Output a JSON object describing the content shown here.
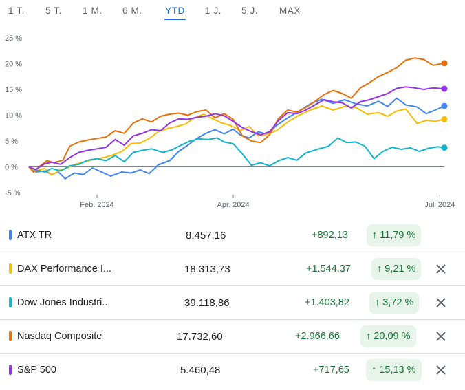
{
  "tabs": [
    {
      "label": "1 T."
    },
    {
      "label": "5 T."
    },
    {
      "label": "1 M."
    },
    {
      "label": "6 M."
    },
    {
      "label": "YTD",
      "active": true
    },
    {
      "label": "1 J."
    },
    {
      "label": "5 J."
    },
    {
      "label": "MAX"
    }
  ],
  "chart_data": {
    "type": "line",
    "title": "",
    "xlabel": "",
    "ylabel": "",
    "y_ticks": [
      "25 %",
      "20 %",
      "15 %",
      "10 %",
      "5 %",
      "0 %",
      "-5 %"
    ],
    "ylim": [
      -5,
      25
    ],
    "x_tick_labels": [
      "Feb. 2024",
      "Apr. 2024",
      "Juli 2024"
    ],
    "x_range": [
      "2024-01-02",
      "2024-07-03"
    ],
    "grid": false,
    "series": [
      {
        "name": "ATX TR",
        "color": "#4285f4",
        "points": [
          [
            "2024-01-02",
            0
          ],
          [
            "2024-01-05",
            -1
          ],
          [
            "2024-01-09",
            -0.8
          ],
          [
            "2024-01-12",
            -1.5
          ],
          [
            "2024-01-15",
            -1
          ],
          [
            "2024-01-18",
            -2.3
          ],
          [
            "2024-01-22",
            -1.2
          ],
          [
            "2024-01-26",
            -1.5
          ],
          [
            "2024-01-30",
            -0.2
          ],
          [
            "2024-02-03",
            -1.0
          ],
          [
            "2024-02-07",
            -1.8
          ],
          [
            "2024-02-12",
            -1.0
          ],
          [
            "2024-02-16",
            -1.2
          ],
          [
            "2024-02-20",
            -0.6
          ],
          [
            "2024-02-24",
            -1.3
          ],
          [
            "2024-02-28",
            0.4
          ],
          [
            "2024-03-04",
            1.2
          ],
          [
            "2024-03-08",
            3.0
          ],
          [
            "2024-03-12",
            4.2
          ],
          [
            "2024-03-16",
            5.5
          ],
          [
            "2024-03-20",
            6.5
          ],
          [
            "2024-03-24",
            7.2
          ],
          [
            "2024-03-28",
            6.4
          ],
          [
            "2024-04-01",
            7.3
          ],
          [
            "2024-04-04",
            6.2
          ],
          [
            "2024-04-08",
            5.6
          ],
          [
            "2024-04-12",
            6.8
          ],
          [
            "2024-04-16",
            6.3
          ],
          [
            "2024-04-20",
            8.0
          ],
          [
            "2024-04-25",
            9.5
          ],
          [
            "2024-04-30",
            10.8
          ],
          [
            "2024-05-05",
            12.2
          ],
          [
            "2024-05-10",
            13.1
          ],
          [
            "2024-05-15",
            12.3
          ],
          [
            "2024-05-20",
            13.0
          ],
          [
            "2024-05-25",
            12.2
          ],
          [
            "2024-05-30",
            11.8
          ],
          [
            "2024-06-04",
            12.7
          ],
          [
            "2024-06-08",
            11.7
          ],
          [
            "2024-06-12",
            13.3
          ],
          [
            "2024-06-16",
            12.0
          ],
          [
            "2024-06-21",
            11.6
          ],
          [
            "2024-06-25",
            10.3
          ],
          [
            "2024-06-29",
            11.0
          ],
          [
            "2024-07-03",
            11.79
          ]
        ]
      },
      {
        "name": "DAX Performance I...",
        "color": "#fbbc04",
        "points": [
          [
            "2024-01-02",
            0
          ],
          [
            "2024-01-05",
            -0.8
          ],
          [
            "2024-01-09",
            -0.3
          ],
          [
            "2024-01-12",
            -1.6
          ],
          [
            "2024-01-16",
            -0.6
          ],
          [
            "2024-01-19",
            -0.2
          ],
          [
            "2024-01-23",
            0.6
          ],
          [
            "2024-01-27",
            1.0
          ],
          [
            "2024-01-31",
            1.5
          ],
          [
            "2024-02-04",
            1.8
          ],
          [
            "2024-02-08",
            2.3
          ],
          [
            "2024-02-12",
            3.0
          ],
          [
            "2024-02-16",
            4.5
          ],
          [
            "2024-02-20",
            4.6
          ],
          [
            "2024-02-24",
            5.5
          ],
          [
            "2024-02-28",
            6.8
          ],
          [
            "2024-03-03",
            7.4
          ],
          [
            "2024-03-07",
            7.8
          ],
          [
            "2024-03-11",
            8.3
          ],
          [
            "2024-03-15",
            9.5
          ],
          [
            "2024-03-19",
            10.2
          ],
          [
            "2024-03-23",
            9.3
          ],
          [
            "2024-03-27",
            8.5
          ],
          [
            "2024-03-31",
            8.0
          ],
          [
            "2024-04-04",
            7.0
          ],
          [
            "2024-04-08",
            7.8
          ],
          [
            "2024-04-12",
            6.0
          ],
          [
            "2024-04-16",
            6.3
          ],
          [
            "2024-04-20",
            7.0
          ],
          [
            "2024-04-25",
            8.7
          ],
          [
            "2024-04-30",
            10.0
          ],
          [
            "2024-05-05",
            11.0
          ],
          [
            "2024-05-10",
            11.8
          ],
          [
            "2024-05-15",
            11.0
          ],
          [
            "2024-05-20",
            11.7
          ],
          [
            "2024-05-25",
            11.5
          ],
          [
            "2024-05-30",
            10.2
          ],
          [
            "2024-06-04",
            10.5
          ],
          [
            "2024-06-08",
            9.8
          ],
          [
            "2024-06-12",
            10.8
          ],
          [
            "2024-06-16",
            11.2
          ],
          [
            "2024-06-21",
            8.4
          ],
          [
            "2024-06-25",
            9.0
          ],
          [
            "2024-06-29",
            8.8
          ],
          [
            "2024-07-03",
            9.21
          ]
        ]
      },
      {
        "name": "Dow Jones Industri...",
        "color": "#12b5cb",
        "points": [
          [
            "2024-01-02",
            0
          ],
          [
            "2024-01-05",
            -0.6
          ],
          [
            "2024-01-09",
            -1.0
          ],
          [
            "2024-01-12",
            -0.3
          ],
          [
            "2024-01-16",
            -0.8
          ],
          [
            "2024-01-20",
            0.2
          ],
          [
            "2024-01-24",
            0.5
          ],
          [
            "2024-01-28",
            1.3
          ],
          [
            "2024-02-01",
            1.6
          ],
          [
            "2024-02-05",
            1.2
          ],
          [
            "2024-02-09",
            2.2
          ],
          [
            "2024-02-13",
            1.0
          ],
          [
            "2024-02-17",
            2.8
          ],
          [
            "2024-02-21",
            3.2
          ],
          [
            "2024-02-25",
            3.5
          ],
          [
            "2024-03-01",
            2.8
          ],
          [
            "2024-03-05",
            3.3
          ],
          [
            "2024-03-09",
            4.2
          ],
          [
            "2024-03-13",
            5.0
          ],
          [
            "2024-03-17",
            5.4
          ],
          [
            "2024-03-21",
            5.3
          ],
          [
            "2024-03-25",
            5.6
          ],
          [
            "2024-03-28",
            4.8
          ],
          [
            "2024-04-01",
            4.5
          ],
          [
            "2024-04-05",
            2.5
          ],
          [
            "2024-04-09",
            0.3
          ],
          [
            "2024-04-13",
            0.8
          ],
          [
            "2024-04-17",
            0.2
          ],
          [
            "2024-04-21",
            1.2
          ],
          [
            "2024-04-25",
            1.8
          ],
          [
            "2024-04-29",
            1.3
          ],
          [
            "2024-05-03",
            2.7
          ],
          [
            "2024-05-08",
            3.4
          ],
          [
            "2024-05-13",
            4.0
          ],
          [
            "2024-05-17",
            5.6
          ],
          [
            "2024-05-21",
            4.7
          ],
          [
            "2024-05-25",
            4.8
          ],
          [
            "2024-05-29",
            4.0
          ],
          [
            "2024-06-02",
            1.6
          ],
          [
            "2024-06-06",
            3.0
          ],
          [
            "2024-06-10",
            3.8
          ],
          [
            "2024-06-14",
            3.4
          ],
          [
            "2024-06-18",
            3.7
          ],
          [
            "2024-06-22",
            3.0
          ],
          [
            "2024-06-26",
            3.6
          ],
          [
            "2024-06-30",
            3.9
          ],
          [
            "2024-07-03",
            3.72
          ]
        ]
      },
      {
        "name": "Nasdaq Composite",
        "color": "#e8710a",
        "points": [
          [
            "2024-01-02",
            0
          ],
          [
            "2024-01-04",
            -1.0
          ],
          [
            "2024-01-07",
            0.2
          ],
          [
            "2024-01-10",
            1.2
          ],
          [
            "2024-01-13",
            0.8
          ],
          [
            "2024-01-17",
            1.3
          ],
          [
            "2024-01-20",
            4.0
          ],
          [
            "2024-01-24",
            4.8
          ],
          [
            "2024-01-28",
            5.2
          ],
          [
            "2024-02-01",
            5.5
          ],
          [
            "2024-02-05",
            5.8
          ],
          [
            "2024-02-09",
            7.0
          ],
          [
            "2024-02-13",
            6.5
          ],
          [
            "2024-02-17",
            8.5
          ],
          [
            "2024-02-21",
            9.3
          ],
          [
            "2024-02-25",
            8.7
          ],
          [
            "2024-02-29",
            9.8
          ],
          [
            "2024-03-04",
            10.2
          ],
          [
            "2024-03-08",
            10.4
          ],
          [
            "2024-03-12",
            10.0
          ],
          [
            "2024-03-16",
            10.7
          ],
          [
            "2024-03-20",
            11.0
          ],
          [
            "2024-03-24",
            9.5
          ],
          [
            "2024-03-28",
            10.3
          ],
          [
            "2024-04-01",
            9.2
          ],
          [
            "2024-04-05",
            6.0
          ],
          [
            "2024-04-09",
            5.0
          ],
          [
            "2024-04-13",
            4.7
          ],
          [
            "2024-04-17",
            6.2
          ],
          [
            "2024-04-21",
            9.4
          ],
          [
            "2024-04-25",
            11.0
          ],
          [
            "2024-04-29",
            10.6
          ],
          [
            "2024-05-03",
            11.5
          ],
          [
            "2024-05-07",
            12.7
          ],
          [
            "2024-05-11",
            14.0
          ],
          [
            "2024-05-15",
            14.8
          ],
          [
            "2024-05-19",
            14.2
          ],
          [
            "2024-05-23",
            13.3
          ],
          [
            "2024-05-27",
            15.3
          ],
          [
            "2024-05-31",
            16.3
          ],
          [
            "2024-06-04",
            17.5
          ],
          [
            "2024-06-08",
            18.3
          ],
          [
            "2024-06-12",
            19.2
          ],
          [
            "2024-06-16",
            20.7
          ],
          [
            "2024-06-20",
            21.1
          ],
          [
            "2024-06-24",
            20.8
          ],
          [
            "2024-06-28",
            19.7
          ],
          [
            "2024-07-03",
            20.09
          ]
        ]
      },
      {
        "name": "S&P 500",
        "color": "#9334e6",
        "points": [
          [
            "2024-01-02",
            0
          ],
          [
            "2024-01-05",
            -0.5
          ],
          [
            "2024-01-09",
            0.6
          ],
          [
            "2024-01-12",
            0.9
          ],
          [
            "2024-01-16",
            0.5
          ],
          [
            "2024-01-20",
            1.8
          ],
          [
            "2024-01-24",
            2.8
          ],
          [
            "2024-01-28",
            3.2
          ],
          [
            "2024-02-01",
            3.5
          ],
          [
            "2024-02-05",
            3.8
          ],
          [
            "2024-02-09",
            5.3
          ],
          [
            "2024-02-13",
            4.2
          ],
          [
            "2024-02-17",
            6.0
          ],
          [
            "2024-02-21",
            6.5
          ],
          [
            "2024-02-25",
            7.2
          ],
          [
            "2024-02-29",
            7.0
          ],
          [
            "2024-03-04",
            8.5
          ],
          [
            "2024-03-08",
            9.3
          ],
          [
            "2024-03-12",
            9.2
          ],
          [
            "2024-03-16",
            9.6
          ],
          [
            "2024-03-20",
            9.8
          ],
          [
            "2024-03-24",
            10.3
          ],
          [
            "2024-03-28",
            9.9
          ],
          [
            "2024-04-01",
            8.8
          ],
          [
            "2024-04-05",
            7.6
          ],
          [
            "2024-04-09",
            6.8
          ],
          [
            "2024-04-13",
            6.2
          ],
          [
            "2024-04-17",
            6.8
          ],
          [
            "2024-04-21",
            9.0
          ],
          [
            "2024-04-25",
            10.5
          ],
          [
            "2024-04-29",
            10.3
          ],
          [
            "2024-05-03",
            11.0
          ],
          [
            "2024-05-07",
            12.0
          ],
          [
            "2024-05-11",
            13.0
          ],
          [
            "2024-05-15",
            12.6
          ],
          [
            "2024-05-19",
            12.4
          ],
          [
            "2024-05-23",
            11.4
          ],
          [
            "2024-05-27",
            12.6
          ],
          [
            "2024-05-31",
            13.0
          ],
          [
            "2024-06-04",
            13.6
          ],
          [
            "2024-06-08",
            14.2
          ],
          [
            "2024-06-12",
            15.2
          ],
          [
            "2024-06-16",
            15.5
          ],
          [
            "2024-06-20",
            15.3
          ],
          [
            "2024-06-24",
            15.0
          ],
          [
            "2024-06-28",
            15.3
          ],
          [
            "2024-07-03",
            15.13
          ]
        ]
      }
    ]
  },
  "rows": [
    {
      "name": "ATX TR",
      "color": "#4285f4",
      "price": "8.457,16",
      "change": "+892,13",
      "pct": "11,79 %",
      "removable": false
    },
    {
      "name": "DAX Performance I...",
      "color": "#fbbc04",
      "price": "18.313,73",
      "change": "+1.544,37",
      "pct": "9,21 %",
      "removable": true
    },
    {
      "name": "Dow Jones Industri...",
      "color": "#12b5cb",
      "price": "39.118,86",
      "change": "+1.403,82",
      "pct": "3,72 %",
      "removable": true
    },
    {
      "name": "Nasdaq Composite",
      "color": "#e8710a",
      "price": "17.732,60",
      "change": "+2.966,66",
      "pct": "20,09 %",
      "removable": true
    },
    {
      "name": "S&P 500",
      "color": "#9334e6",
      "price": "5.460,48",
      "change": "+717,65",
      "pct": "15,13 %",
      "removable": true
    }
  ],
  "icons": {
    "up_arrow": "arrow-up-icon",
    "remove": "close-icon"
  }
}
